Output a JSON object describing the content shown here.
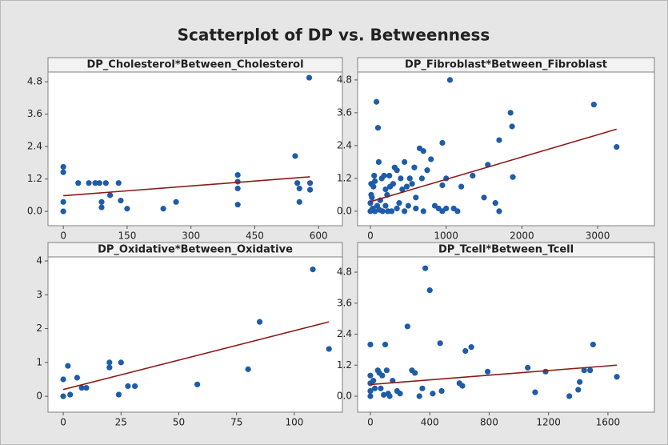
{
  "title": "Scatterplot of DP vs. Betweenness",
  "chart_data": [
    {
      "type": "scatter",
      "title": "DP_Cholesterol*Between_Cholesterol",
      "color": "#1f5ca8",
      "x": [
        0,
        0,
        0,
        0,
        35,
        60,
        75,
        85,
        90,
        90,
        100,
        110,
        130,
        135,
        150,
        235,
        265,
        410,
        410,
        410,
        410,
        545,
        550,
        555,
        555,
        580,
        580,
        578
      ],
      "values": [
        1.65,
        1.45,
        0.35,
        0,
        1.05,
        1.05,
        1.05,
        1.05,
        0.35,
        0.15,
        1.05,
        0.6,
        1.05,
        0.4,
        0.1,
        0.1,
        0.35,
        1.35,
        1.1,
        0.85,
        0.25,
        2.05,
        1.05,
        0.85,
        0.35,
        1.05,
        0.8,
        4.95
      ],
      "trend": {
        "color": "#8b1a1a",
        "x": [
          0,
          580
        ],
        "y": [
          0.58,
          1.28
        ]
      },
      "xlim": [
        -36,
        656
      ],
      "xticks": [
        0,
        150,
        300,
        450,
        600
      ],
      "ylim": [
        -0.53,
        5.16
      ],
      "yticks": [
        {
          "value": 0,
          "label": "0.0"
        },
        1.2,
        2.4,
        3.6,
        4.8
      ]
    },
    {
      "type": "scatter",
      "title": "DP_Fibroblast*Between_Fibroblast",
      "color": "#1f5ca8",
      "x": [
        30,
        20,
        40,
        60,
        80,
        100,
        110,
        120,
        150,
        180,
        200,
        220,
        250,
        280,
        300,
        320,
        350,
        380,
        400,
        420,
        450,
        480,
        500,
        520,
        550,
        580,
        600,
        650,
        680,
        700,
        750,
        800,
        850,
        950,
        1000,
        1050,
        1100,
        1200,
        1350,
        1500,
        1550,
        1650,
        1700,
        1850,
        1870,
        1880,
        2950,
        3250,
        0,
        0,
        10,
        10,
        50,
        60,
        90,
        130,
        160,
        200,
        230,
        260,
        350,
        450,
        600,
        700,
        900,
        950,
        1000,
        1150,
        950,
        1700
      ],
      "values": [
        0.1,
        0.5,
        0.9,
        1.1,
        4.0,
        3.05,
        1.8,
        0.05,
        1.2,
        1.3,
        0.2,
        0.6,
        1.3,
        0.0,
        1.0,
        1.6,
        1.5,
        0.3,
        1.2,
        0.8,
        1.8,
        0.9,
        0.2,
        1.2,
        1.0,
        1.6,
        0.5,
        2.3,
        1.2,
        2.2,
        1.5,
        1.9,
        0.2,
        2.5,
        1.2,
        4.8,
        0.1,
        0.9,
        1.3,
        0.5,
        1.7,
        0.3,
        2.6,
        3.6,
        3.1,
        1.25,
        3.9,
        2.35,
        0.0,
        0.3,
        0.6,
        1.0,
        1.3,
        0.0,
        0.2,
        0.4,
        0.0,
        0.8,
        0.0,
        0.9,
        0.1,
        0.0,
        0.1,
        0.0,
        0.1,
        0.0,
        0.1,
        0.0,
        0.95,
        0.0
      ],
      "trend": {
        "color": "#8b1a1a",
        "x": [
          0,
          3250
        ],
        "y": [
          0.35,
          3.0
        ]
      },
      "xlim": [
        -169,
        3749
      ],
      "xticks": [
        0,
        1000,
        2000,
        3000
      ],
      "ylim": [
        -0.53,
        5.09
      ],
      "yticks": [
        {
          "value": 0,
          "label": "0.0"
        },
        1.2,
        2.4,
        3.6,
        4.8
      ]
    },
    {
      "type": "scatter",
      "title": "DP_Oxidative*Between_Oxidative",
      "color": "#1f5ca8",
      "x": [
        0,
        0,
        2,
        3,
        6,
        8,
        10,
        20,
        20,
        24,
        25,
        28,
        31,
        58,
        80,
        85,
        108,
        115
      ],
      "values": [
        0,
        0.5,
        0.9,
        0.05,
        0.55,
        0.25,
        0.25,
        1.0,
        0.85,
        0.05,
        1.0,
        0.3,
        0.3,
        0.35,
        0.8,
        2.2,
        3.75,
        1.4
      ],
      "trend": {
        "color": "#8b1a1a",
        "x": [
          0,
          115
        ],
        "y": [
          0.2,
          2.2
        ]
      },
      "xlim": [
        -6.6,
        120.8
      ],
      "xticks": [
        0,
        25,
        50,
        75,
        100
      ],
      "ylim": [
        -0.47,
        4.12
      ],
      "yticks": [
        0,
        1,
        2,
        3,
        4
      ]
    },
    {
      "type": "scatter",
      "title": "DP_Tcell*Between_Tcell",
      "color": "#1f5ca8",
      "x": [
        0,
        0,
        0,
        0,
        0,
        20,
        30,
        50,
        60,
        70,
        80,
        90,
        100,
        110,
        120,
        130,
        150,
        180,
        200,
        250,
        280,
        300,
        330,
        350,
        370,
        400,
        420,
        470,
        480,
        600,
        620,
        640,
        680,
        790,
        1060,
        1110,
        1180,
        1340,
        1400,
        1410,
        1440,
        1480,
        1500,
        1660
      ],
      "values": [
        2.0,
        0.8,
        0.5,
        0.2,
        0,
        0.6,
        0.3,
        1.0,
        0.9,
        0.3,
        0.8,
        0.05,
        2.0,
        1.0,
        0.1,
        0.0,
        0.6,
        0.2,
        0.1,
        2.7,
        1.0,
        0.9,
        0.0,
        0.3,
        4.95,
        4.1,
        0.1,
        2.05,
        0.2,
        0.5,
        0.4,
        1.75,
        1.9,
        0.95,
        1.1,
        0.15,
        0.95,
        0.0,
        0.25,
        0.55,
        1.0,
        1.0,
        2.0,
        0.75
      ],
      "trend": {
        "color": "#8b1a1a",
        "x": [
          0,
          1660
        ],
        "y": [
          0.45,
          1.2
        ]
      },
      "xlim": [
        -86,
        1913
      ],
      "xticks": [
        0,
        400,
        800,
        1200,
        1600
      ],
      "ylim": [
        -0.62,
        5.39
      ],
      "yticks": [
        {
          "value": 0,
          "label": "0.0"
        },
        1.2,
        2.4,
        3.6,
        4.8
      ]
    }
  ]
}
